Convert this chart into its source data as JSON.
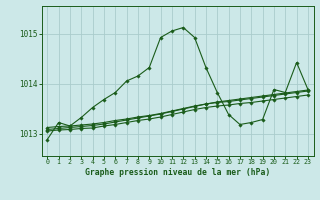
{
  "bg_color": "#cce8e8",
  "grid_color": "#aacccc",
  "line_color": "#1a5c1a",
  "title": "Graphe pression niveau de la mer (hPa)",
  "xlim": [
    -0.5,
    23.5
  ],
  "ylim": [
    1012.55,
    1015.55
  ],
  "yticks": [
    1013,
    1014,
    1015
  ],
  "xticks": [
    0,
    1,
    2,
    3,
    4,
    5,
    6,
    7,
    8,
    9,
    10,
    11,
    12,
    13,
    14,
    15,
    16,
    17,
    18,
    19,
    20,
    21,
    22,
    23
  ],
  "series1_x": [
    0,
    1,
    2,
    3,
    4,
    5,
    6,
    7,
    8,
    9,
    10,
    11,
    12,
    13,
    14,
    15,
    16,
    17,
    18,
    19,
    20,
    21,
    22,
    23
  ],
  "series1_y": [
    1012.88,
    1013.22,
    1013.15,
    1013.32,
    1013.52,
    1013.68,
    1013.82,
    1014.05,
    1014.15,
    1014.32,
    1014.92,
    1015.05,
    1015.12,
    1014.92,
    1014.32,
    1013.82,
    1013.38,
    1013.18,
    1013.22,
    1013.28,
    1013.88,
    1013.82,
    1014.42,
    1013.88
  ],
  "series2_x": [
    0,
    1,
    2,
    3,
    4,
    5,
    6,
    7,
    8,
    9,
    10,
    11,
    12,
    13,
    14,
    15,
    16,
    17,
    18,
    19,
    20,
    21,
    22,
    23
  ],
  "series2_y": [
    1013.08,
    1013.1,
    1013.12,
    1013.14,
    1013.16,
    1013.19,
    1013.23,
    1013.27,
    1013.31,
    1013.35,
    1013.39,
    1013.44,
    1013.49,
    1013.54,
    1013.59,
    1013.63,
    1013.66,
    1013.69,
    1013.72,
    1013.75,
    1013.78,
    1013.81,
    1013.84,
    1013.87
  ],
  "series3_x": [
    0,
    1,
    2,
    3,
    4,
    5,
    6,
    7,
    8,
    9,
    10,
    11,
    12,
    13,
    14,
    15,
    16,
    17,
    18,
    19,
    20,
    21,
    22,
    23
  ],
  "series3_y": [
    1013.12,
    1013.14,
    1013.15,
    1013.17,
    1013.19,
    1013.22,
    1013.26,
    1013.29,
    1013.33,
    1013.36,
    1013.4,
    1013.45,
    1013.5,
    1013.55,
    1013.59,
    1013.62,
    1013.64,
    1013.67,
    1013.7,
    1013.73,
    1013.76,
    1013.79,
    1013.82,
    1013.85
  ],
  "series4_x": [
    0,
    1,
    2,
    3,
    4,
    5,
    6,
    7,
    8,
    9,
    10,
    11,
    12,
    13,
    14,
    15,
    16,
    17,
    18,
    19,
    20,
    21,
    22,
    23
  ],
  "series4_y": [
    1013.05,
    1013.07,
    1013.08,
    1013.1,
    1013.11,
    1013.15,
    1013.18,
    1013.22,
    1013.26,
    1013.29,
    1013.33,
    1013.38,
    1013.43,
    1013.48,
    1013.52,
    1013.55,
    1013.57,
    1013.6,
    1013.62,
    1013.65,
    1013.68,
    1013.71,
    1013.74,
    1013.77
  ]
}
